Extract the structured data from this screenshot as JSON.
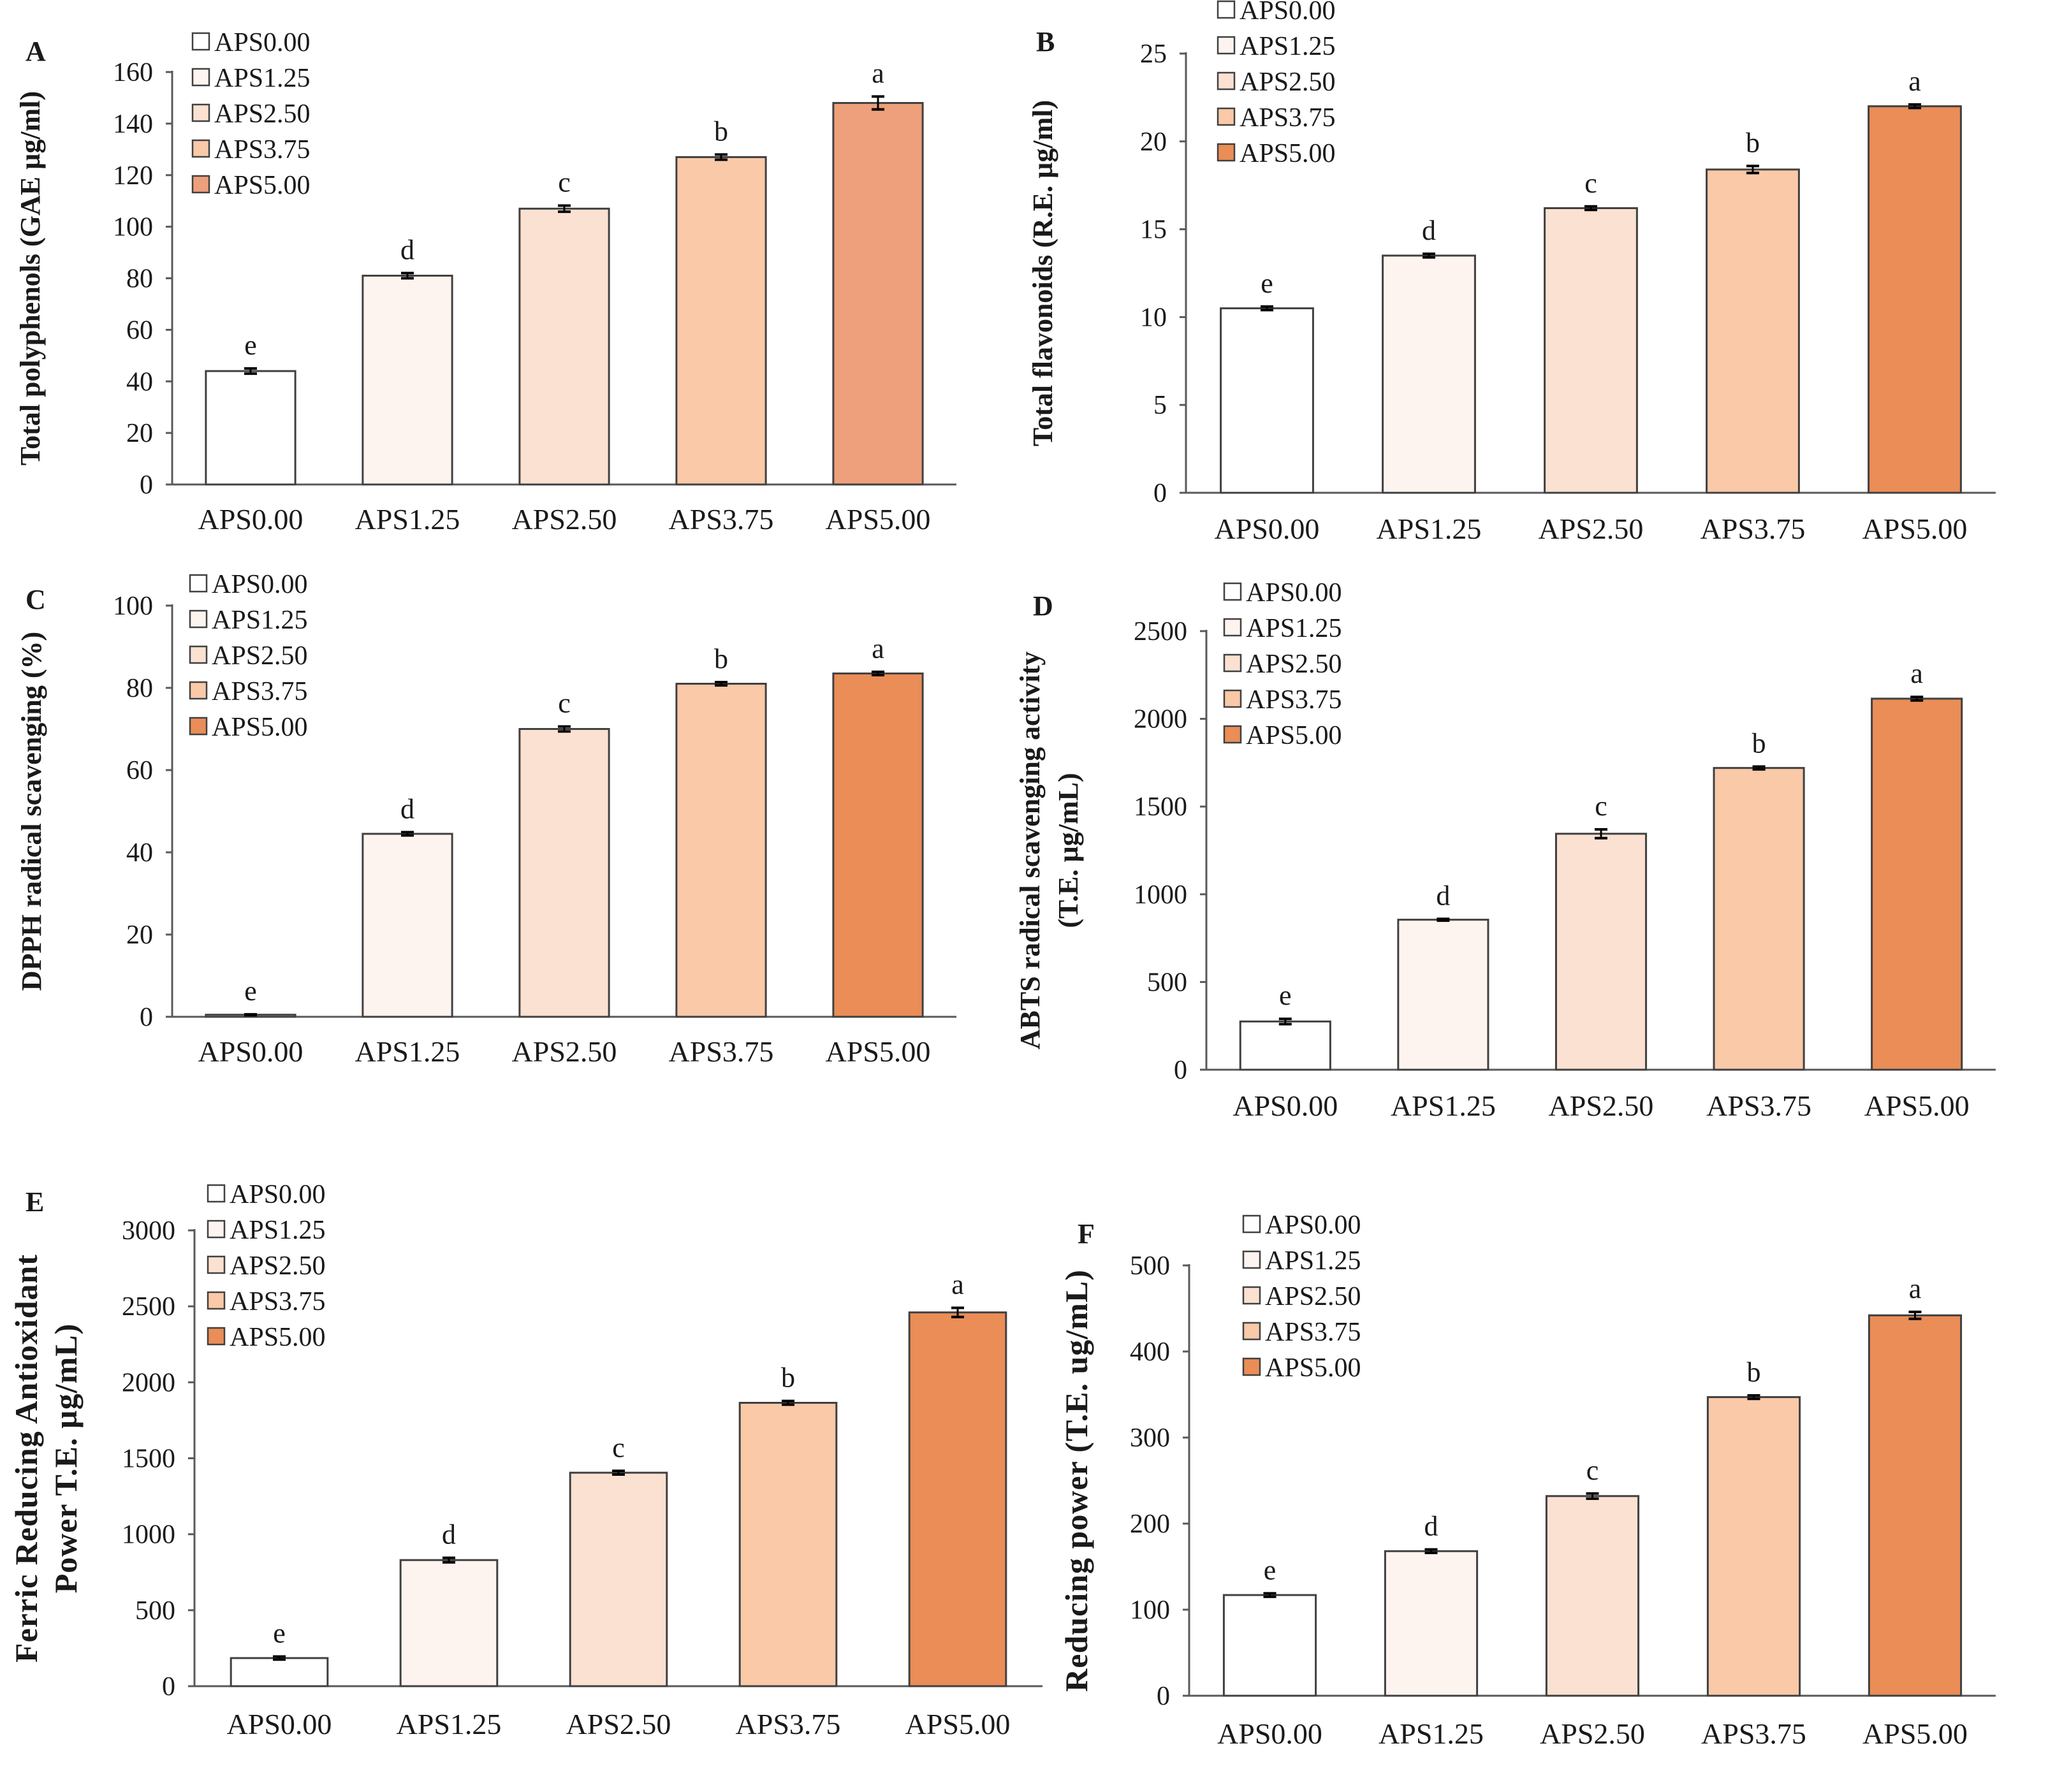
{
  "figure": {
    "colors": {
      "APS0.00": "#ffffff",
      "APS1.25": "#fdf4ef",
      "APS2.50": "#fbe1d1",
      "APS3.75": "#f9c9a8",
      "APS5.00": "#ea8d57",
      "APS5.00_panelA": "#eda07b",
      "axis": "#595959",
      "bar_border": "#404040"
    }
  },
  "chart_data": [
    {
      "id": "A",
      "type": "bar",
      "panel_letter": "A",
      "title": "",
      "ylabel": "Total polyphenols (GAE µg/ml)",
      "categories": [
        "APS0.00",
        "APS1.25",
        "APS2.50",
        "APS3.75",
        "APS5.00"
      ],
      "values": [
        44,
        81,
        107,
        127,
        148
      ],
      "errors": [
        1,
        1,
        1.2,
        1,
        2.5
      ],
      "significance": [
        "e",
        "d",
        "c",
        "b",
        "a"
      ],
      "ylim": [
        0,
        160
      ],
      "yticks": [
        0,
        20,
        40,
        60,
        80,
        100,
        120,
        140,
        160
      ],
      "legend": [
        "APS0.00",
        "APS1.25",
        "APS2.50",
        "APS3.75",
        "APS5.00"
      ],
      "legend_position": "top-left"
    },
    {
      "id": "B",
      "type": "bar",
      "panel_letter": "B",
      "title": "",
      "ylabel": "Total flavonoids (R.E. µg/ml)",
      "categories": [
        "APS0.00",
        "APS1.25",
        "APS2.50",
        "APS3.75",
        "APS5.00"
      ],
      "values": [
        10.5,
        13.5,
        16.2,
        18.4,
        22
      ],
      "errors": [
        0.1,
        0.1,
        0.1,
        0.2,
        0.1
      ],
      "significance": [
        "e",
        "d",
        "c",
        "b",
        "a"
      ],
      "ylim": [
        0,
        25
      ],
      "yticks": [
        0,
        5,
        10,
        15,
        20,
        25
      ],
      "legend": [
        "APS0.00",
        "APS1.25",
        "APS2.50",
        "APS3.75",
        "APS5.00"
      ],
      "legend_position": "top-left"
    },
    {
      "id": "C",
      "type": "bar",
      "panel_letter": "C",
      "title": "",
      "ylabel": "DPPH radical scavenging (%)",
      "categories": [
        "APS0.00",
        "APS1.25",
        "APS2.50",
        "APS3.75",
        "APS5.00"
      ],
      "values": [
        0.5,
        44.5,
        70,
        81,
        83.5
      ],
      "errors": [
        0.1,
        0.4,
        0.6,
        0.4,
        0.4
      ],
      "significance": [
        "e",
        "d",
        "c",
        "b",
        "a"
      ],
      "ylim": [
        0,
        100
      ],
      "yticks": [
        0,
        20,
        40,
        60,
        80,
        100
      ],
      "legend": [
        "APS0.00",
        "APS1.25",
        "APS2.50",
        "APS3.75",
        "APS5.00"
      ],
      "legend_position": "top-left"
    },
    {
      "id": "D",
      "type": "bar",
      "panel_letter": "D",
      "title": "",
      "ylabel_line1": "ABTS radical scavenging activity",
      "ylabel_line2": "(T.E. µg/mL)",
      "categories": [
        "APS0.00",
        "APS1.25",
        "APS2.50",
        "APS3.75",
        "APS5.00"
      ],
      "values": [
        275,
        855,
        1345,
        1720,
        2115
      ],
      "errors": [
        15,
        5,
        25,
        8,
        10
      ],
      "significance": [
        "e",
        "d",
        "c",
        "b",
        "a"
      ],
      "ylim": [
        0,
        2500
      ],
      "yticks": [
        0,
        500,
        1000,
        1500,
        2000,
        2500
      ],
      "legend": [
        "APS0.00",
        "APS1.25",
        "APS2.50",
        "APS3.75",
        "APS5.00"
      ],
      "legend_position": "top-left"
    },
    {
      "id": "E",
      "type": "bar",
      "panel_letter": "E",
      "title": "",
      "ylabel_line1": "Ferric Reducing Antioxidant",
      "ylabel_line2": "Power T.E. µg/mL)",
      "categories": [
        "APS0.00",
        "APS1.25",
        "APS2.50",
        "APS3.75",
        "APS5.00"
      ],
      "values": [
        185,
        830,
        1405,
        1865,
        2460
      ],
      "errors": [
        10,
        15,
        12,
        12,
        30
      ],
      "significance": [
        "e",
        "d",
        "c",
        "b",
        "a"
      ],
      "ylim": [
        0,
        3000
      ],
      "yticks": [
        0,
        500,
        1000,
        1500,
        2000,
        2500,
        3000
      ],
      "legend": [
        "APS0.00",
        "APS1.25",
        "APS2.50",
        "APS3.75",
        "APS5.00"
      ],
      "legend_position": "top-left"
    },
    {
      "id": "F",
      "type": "bar",
      "panel_letter": "F",
      "title": "",
      "ylabel": "Reducing power (T.E. ug/mL)",
      "categories": [
        "APS0.00",
        "APS1.25",
        "APS2.50",
        "APS3.75",
        "APS5.00"
      ],
      "values": [
        117,
        168,
        232,
        347,
        442
      ],
      "errors": [
        2,
        2,
        3,
        2,
        4
      ],
      "significance": [
        "e",
        "d",
        "c",
        "b",
        "a"
      ],
      "ylim": [
        0,
        500
      ],
      "yticks": [
        0,
        100,
        200,
        300,
        400,
        500
      ],
      "legend": [
        "APS0.00",
        "APS1.25",
        "APS2.50",
        "APS3.75",
        "APS5.00"
      ],
      "legend_position": "top-left"
    }
  ]
}
